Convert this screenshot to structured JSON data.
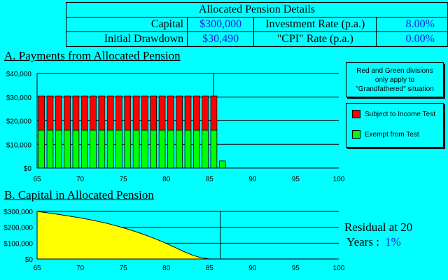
{
  "details": {
    "title": "Allocated Pension Details",
    "capital_label": "Capital",
    "capital_value": "$300,000",
    "investment_label": "Investment Rate (p.a.)",
    "investment_value": "8.00%",
    "drawdown_label": "Initial Drawdown",
    "drawdown_value": "$30,490",
    "cpi_label": "\"CPI\" Rate (p.a.)",
    "cpi_value": "0.00%"
  },
  "section_a_title": "A.  Payments from Allocated Pension",
  "section_b_title": "B.  Capital in Allocated Pension",
  "note": {
    "line1": "Red and Green divisions",
    "line2": "only apply to",
    "line3": "\"Grandfathered\" situation"
  },
  "legend": {
    "red_label": "Subject to Income Test",
    "green_label": "Exempt from Test",
    "red_color": "#ff0000",
    "green_color": "#00ff00"
  },
  "residual": {
    "line1": "Residual at 20",
    "line2_prefix": "Years :",
    "value": "1%"
  },
  "colors": {
    "background": "#00ffff",
    "accent_value": "#1b1be8",
    "area_fill": "#ffff00"
  },
  "chart_data": [
    {
      "type": "bar",
      "x": [
        65,
        66,
        67,
        68,
        69,
        70,
        71,
        72,
        73,
        74,
        75,
        76,
        77,
        78,
        79,
        80,
        81,
        82,
        83,
        84,
        85,
        86
      ],
      "series": [
        {
          "name": "Exempt from Test",
          "color": "#00ff00",
          "values": [
            16000,
            16000,
            16000,
            16000,
            16000,
            16000,
            16000,
            16000,
            16000,
            16000,
            16000,
            16000,
            16000,
            16000,
            16000,
            16000,
            16000,
            16000,
            16000,
            16000,
            16000,
            3000
          ]
        },
        {
          "name": "Subject to Income Test",
          "color": "#ff0000",
          "values": [
            14490,
            14490,
            14490,
            14490,
            14490,
            14490,
            14490,
            14490,
            14490,
            14490,
            14490,
            14490,
            14490,
            14490,
            14490,
            14490,
            14490,
            14490,
            14490,
            14490,
            14490,
            0
          ]
        }
      ],
      "xticks": [
        65,
        70,
        75,
        80,
        85,
        90,
        95,
        100
      ],
      "yticks": [
        0,
        10000,
        20000,
        30000,
        40000
      ],
      "ytick_labels": [
        "$0",
        "$10,000",
        "$20,000",
        "$30,000",
        "$40,000"
      ],
      "xlim": [
        65,
        100
      ],
      "ylim": [
        0,
        40000
      ],
      "marker_x": 85.5
    },
    {
      "type": "area",
      "x": [
        65,
        66,
        67,
        68,
        69,
        70,
        71,
        72,
        73,
        74,
        75,
        76,
        77,
        78,
        79,
        80,
        81,
        82,
        83,
        84,
        85,
        86
      ],
      "y": [
        300000,
        293000,
        285000,
        277000,
        268000,
        259000,
        249000,
        238000,
        226000,
        212000,
        197000,
        180000,
        162000,
        142000,
        121000,
        98000,
        73000,
        47000,
        25000,
        8000,
        0,
        0
      ],
      "xticks": [
        65,
        70,
        75,
        80,
        85,
        90,
        95,
        100
      ],
      "yticks": [
        0,
        100000,
        200000,
        300000
      ],
      "ytick_labels": [
        "$0",
        "$100,000",
        "$200,000",
        "$300,000"
      ],
      "xlim": [
        65,
        100
      ],
      "ylim": [
        0,
        300000
      ],
      "marker_x": 86
    }
  ]
}
